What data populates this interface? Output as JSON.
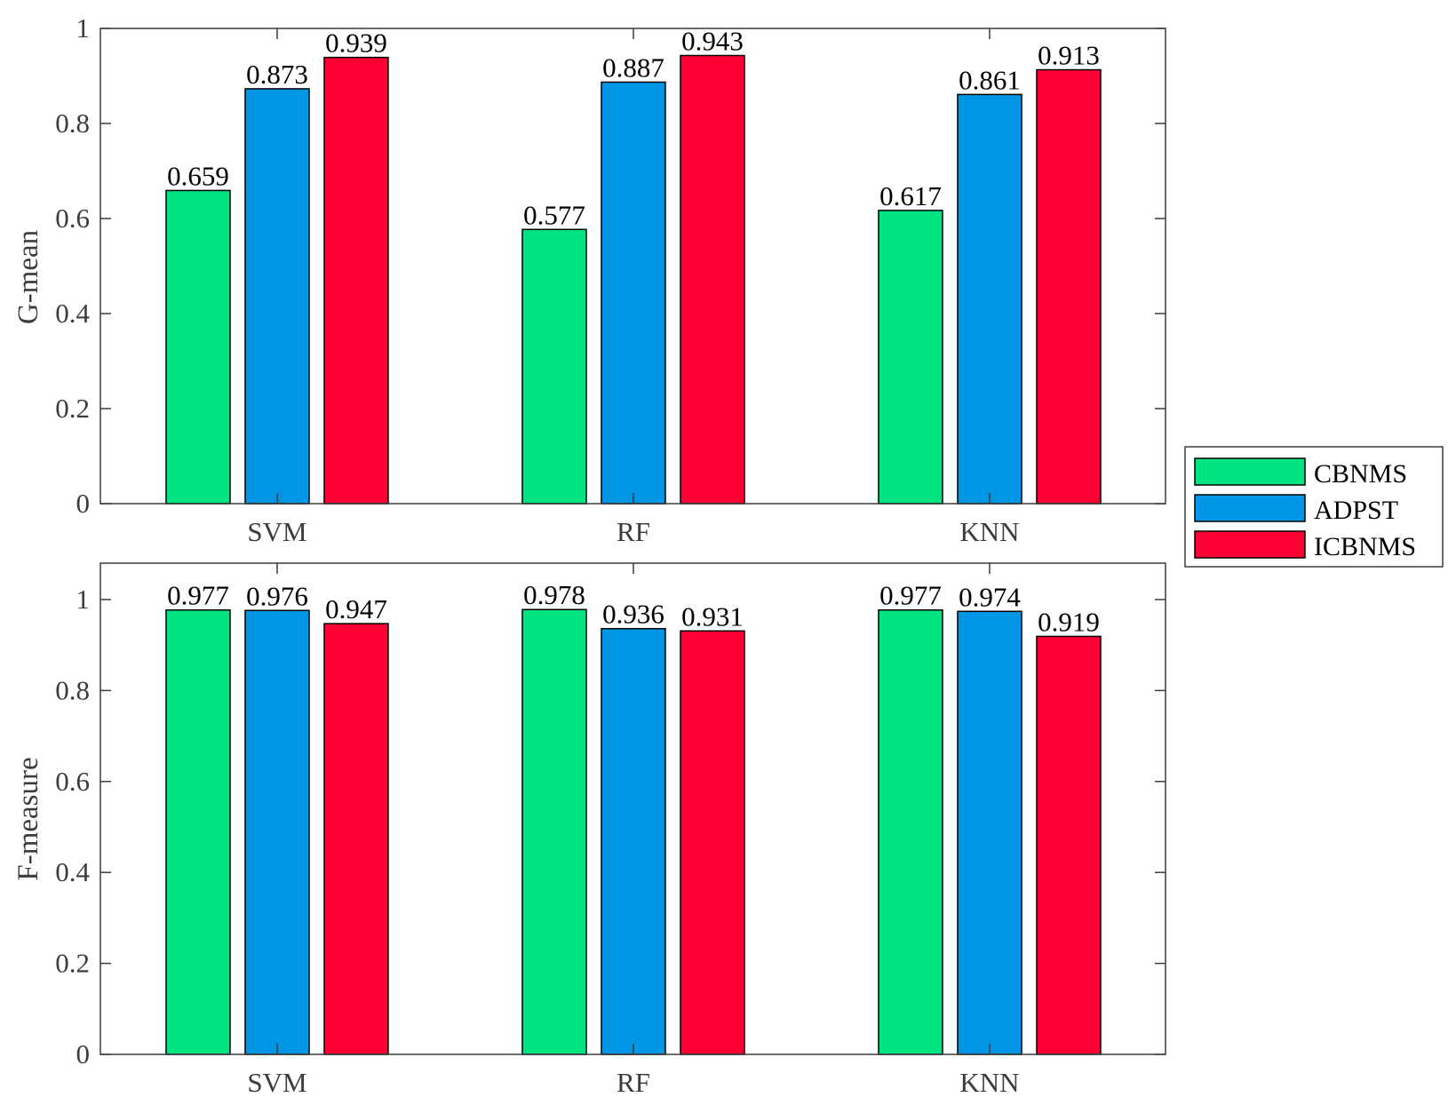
{
  "chart_data": [
    {
      "type": "bar",
      "categories": [
        "SVM",
        "RF",
        "KNN"
      ],
      "series": [
        {
          "name": "CBNMS",
          "values": [
            0.659,
            0.577,
            0.617
          ]
        },
        {
          "name": "ADPST",
          "values": [
            0.873,
            0.887,
            0.861
          ]
        },
        {
          "name": "ICBNMS",
          "values": [
            0.939,
            0.943,
            0.913
          ]
        }
      ],
      "data_labels": [
        [
          "0.659",
          "0.577",
          "0.617"
        ],
        [
          "0.873",
          "0.887",
          "0.861"
        ],
        [
          "0.939",
          "0.943",
          "0.913"
        ]
      ],
      "ylabel": "G-mean",
      "ylim": [
        0,
        1
      ],
      "yticks": [
        "0",
        "0.2",
        "0.4",
        "0.6",
        "0.8",
        "1"
      ],
      "grid": false
    },
    {
      "type": "bar",
      "categories": [
        "SVM",
        "RF",
        "KNN"
      ],
      "series": [
        {
          "name": "CBNMS",
          "values": [
            0.977,
            0.978,
            0.977
          ]
        },
        {
          "name": "ADPST",
          "values": [
            0.976,
            0.936,
            0.974
          ]
        },
        {
          "name": "ICBNMS",
          "values": [
            0.947,
            0.931,
            0.919
          ]
        }
      ],
      "data_labels": [
        [
          "0.977",
          "0.978",
          "0.977"
        ],
        [
          "0.976",
          "0.936",
          "0.974"
        ],
        [
          "0.947",
          "0.931",
          "0.919"
        ]
      ],
      "ylabel": "F-measure",
      "ylim": [
        0,
        1.08
      ],
      "yticks": [
        "0",
        "0.2",
        "0.4",
        "0.6",
        "0.8",
        "1"
      ],
      "grid": false
    }
  ],
  "legend": {
    "placement": "right",
    "items": [
      "CBNMS",
      "ADPST",
      "ICBNMS"
    ]
  },
  "colors": {
    "CBNMS": "#00e382",
    "ADPST": "#0096e6",
    "ICBNMS": "#ff0033",
    "axis": "#3c3c3c"
  }
}
